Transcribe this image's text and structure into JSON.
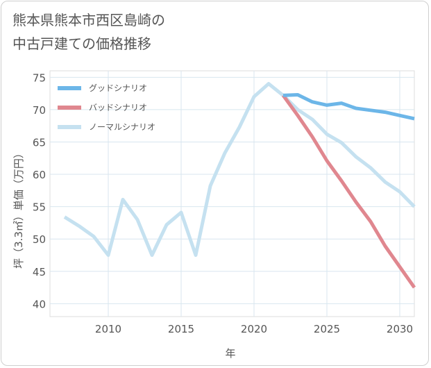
{
  "page": {
    "title_line1": "熊本県熊本市西区島崎の",
    "title_line2": "中古戸建ての価格推移"
  },
  "chart_data": {
    "type": "line",
    "title": "熊本県熊本市西区島崎の中古戸建ての価格推移",
    "xlabel": "年",
    "ylabel": "坪（3.3㎡）単価（万円）",
    "xlim": [
      2006,
      2031
    ],
    "ylim": [
      38,
      76
    ],
    "xticks": [
      2010,
      2015,
      2020,
      2025,
      2030
    ],
    "yticks": [
      40,
      45,
      50,
      55,
      60,
      65,
      70,
      75
    ],
    "grid": true,
    "legend_position": "top-left",
    "series": [
      {
        "name": "グッドシナリオ",
        "color": "#6cb6e8",
        "x": [
          2022,
          2023,
          2024,
          2025,
          2026,
          2027,
          2028,
          2029,
          2030,
          2031
        ],
        "values": [
          72.2,
          72.3,
          71.2,
          70.7,
          71.0,
          70.2,
          69.9,
          69.6,
          69.1,
          68.6
        ]
      },
      {
        "name": "バッドシナリオ",
        "color": "#e0878f",
        "x": [
          2022,
          2023,
          2024,
          2025,
          2026,
          2027,
          2028,
          2029,
          2030,
          2031
        ],
        "values": [
          72.2,
          69.1,
          65.8,
          62.1,
          59.0,
          55.7,
          52.7,
          48.9,
          45.7,
          42.5
        ]
      },
      {
        "name": "ノーマルシナリオ",
        "color": "#c5e1f0",
        "x": [
          2007,
          2008,
          2009,
          2010,
          2011,
          2012,
          2013,
          2014,
          2015,
          2016,
          2017,
          2018,
          2019,
          2020,
          2021,
          2022,
          2023,
          2024,
          2025,
          2026,
          2027,
          2028,
          2029,
          2030,
          2031
        ],
        "values": [
          53.4,
          52.0,
          50.4,
          47.5,
          56.1,
          53.0,
          47.5,
          52.2,
          54.1,
          47.5,
          58.2,
          63.3,
          67.3,
          72.0,
          74.0,
          72.2,
          70.0,
          68.5,
          66.2,
          64.9,
          62.7,
          61.0,
          58.8,
          57.3,
          55.0
        ]
      }
    ]
  }
}
